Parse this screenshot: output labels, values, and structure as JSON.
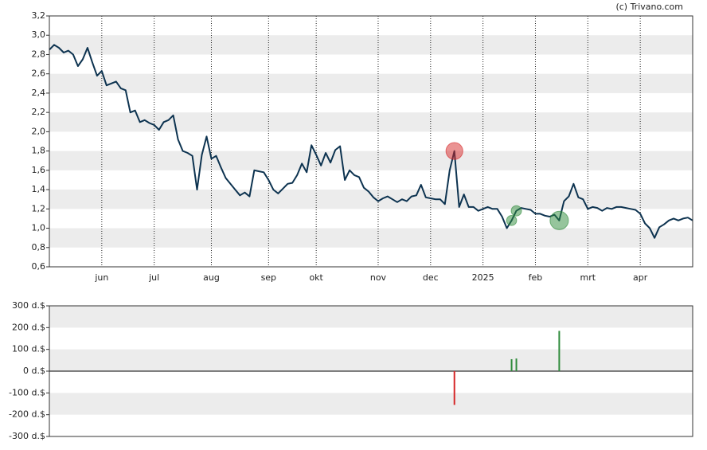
{
  "chart_data": [
    {
      "type": "line",
      "source": "(c) Trivano.com",
      "categories": [
        null,
        null,
        null,
        null,
        null,
        null,
        null,
        null,
        null,
        null,
        null,
        "jun",
        null,
        null,
        null,
        null,
        null,
        null,
        null,
        null,
        null,
        null,
        "jul",
        null,
        null,
        null,
        null,
        null,
        null,
        null,
        null,
        null,
        null,
        null,
        "aug",
        null,
        null,
        null,
        null,
        null,
        null,
        null,
        null,
        null,
        null,
        null,
        "sep",
        null,
        null,
        null,
        null,
        null,
        null,
        null,
        null,
        null,
        "okt",
        null,
        null,
        null,
        null,
        null,
        null,
        null,
        null,
        null,
        null,
        null,
        null,
        "nov",
        null,
        null,
        null,
        null,
        null,
        null,
        null,
        null,
        null,
        null,
        "dec",
        null,
        null,
        null,
        null,
        null,
        null,
        null,
        null,
        null,
        null,
        "2025",
        null,
        null,
        null,
        null,
        null,
        null,
        null,
        null,
        null,
        null,
        "feb",
        null,
        null,
        null,
        null,
        null,
        null,
        null,
        null,
        null,
        null,
        "mrt",
        null,
        null,
        null,
        null,
        null,
        null,
        null,
        null,
        null,
        null,
        "apr",
        null,
        null,
        null,
        null,
        null,
        null,
        null,
        null,
        null,
        null,
        null
      ],
      "values": [
        2.85,
        2.9,
        2.87,
        2.82,
        2.84,
        2.8,
        2.68,
        2.75,
        2.87,
        2.72,
        2.58,
        2.63,
        2.48,
        2.5,
        2.52,
        2.45,
        2.43,
        2.2,
        2.22,
        2.1,
        2.12,
        2.09,
        2.07,
        2.02,
        2.1,
        2.12,
        2.17,
        1.92,
        1.8,
        1.78,
        1.75,
        1.4,
        1.76,
        1.95,
        1.72,
        1.75,
        1.63,
        1.52,
        1.46,
        1.4,
        1.34,
        1.37,
        1.33,
        1.6,
        1.59,
        1.58,
        1.5,
        1.4,
        1.36,
        1.41,
        1.46,
        1.47,
        1.55,
        1.67,
        1.58,
        1.86,
        1.76,
        1.65,
        1.78,
        1.68,
        1.81,
        1.85,
        1.5,
        1.6,
        1.55,
        1.53,
        1.42,
        1.38,
        1.32,
        1.28,
        1.31,
        1.33,
        1.3,
        1.27,
        1.3,
        1.28,
        1.33,
        1.34,
        1.45,
        1.32,
        1.31,
        1.3,
        1.3,
        1.25,
        1.6,
        1.8,
        1.22,
        1.35,
        1.22,
        1.22,
        1.18,
        1.2,
        1.22,
        1.2,
        1.2,
        1.12,
        1.0,
        1.08,
        1.18,
        1.21,
        1.2,
        1.19,
        1.15,
        1.15,
        1.13,
        1.12,
        1.14,
        1.08,
        1.28,
        1.33,
        1.46,
        1.32,
        1.3,
        1.2,
        1.22,
        1.21,
        1.18,
        1.21,
        1.2,
        1.22,
        1.22,
        1.21,
        1.2,
        1.19,
        1.15,
        1.05,
        1.0,
        0.9,
        1.01,
        1.04,
        1.08,
        1.1,
        1.08,
        1.1,
        1.11,
        1.08
      ],
      "color": "#0d3350",
      "ylim": [
        0.6,
        3.2
      ],
      "yticks": [
        {
          "value": 3.2,
          "label": "3,2"
        },
        {
          "value": 3.0,
          "label": "3,0"
        },
        {
          "value": 2.8,
          "label": "2,8"
        },
        {
          "value": 2.6,
          "label": "2,6"
        },
        {
          "value": 2.4,
          "label": "2,4"
        },
        {
          "value": 2.2,
          "label": "2,2"
        },
        {
          "value": 2.0,
          "label": "2,0"
        },
        {
          "value": 1.8,
          "label": "1,8"
        },
        {
          "value": 1.6,
          "label": "1,6"
        },
        {
          "value": 1.4,
          "label": "1,4"
        },
        {
          "value": 1.2,
          "label": "1,2"
        },
        {
          "value": 1.0,
          "label": "1,0"
        },
        {
          "value": 0.8,
          "label": "0,8"
        },
        {
          "value": 0.6,
          "label": "0,6"
        }
      ],
      "grid": true
    },
    {
      "type": "bar",
      "values": [
        null,
        null,
        null,
        null,
        null,
        null,
        null,
        null,
        null,
        null,
        null,
        null,
        null,
        null,
        null,
        null,
        null,
        null,
        null,
        null,
        null,
        null,
        null,
        null,
        null,
        null,
        null,
        null,
        null,
        null,
        null,
        null,
        null,
        null,
        null,
        null,
        null,
        null,
        null,
        null,
        null,
        null,
        null,
        null,
        null,
        null,
        null,
        null,
        null,
        null,
        null,
        null,
        null,
        null,
        null,
        null,
        null,
        null,
        null,
        null,
        null,
        null,
        null,
        null,
        null,
        null,
        null,
        null,
        null,
        null,
        null,
        null,
        null,
        null,
        null,
        null,
        null,
        null,
        null,
        null,
        null,
        null,
        null,
        null,
        null,
        -155,
        null,
        null,
        null,
        null,
        null,
        null,
        null,
        null,
        null,
        null,
        null,
        55,
        58,
        null,
        null,
        null,
        null,
        null,
        null,
        null,
        null,
        185,
        null,
        null,
        null,
        null,
        null,
        null,
        null,
        null,
        null,
        null,
        null,
        null,
        null,
        null,
        null,
        null,
        null,
        null,
        null,
        null,
        null,
        null,
        null,
        null,
        null,
        null,
        null,
        null
      ],
      "positive_color": "#2e8b3a",
      "negative_color": "#d62728",
      "ylim": [
        -300,
        300
      ],
      "yticks": [
        {
          "value": 300,
          "label": "300 d.$"
        },
        {
          "value": 200,
          "label": "200 d.$"
        },
        {
          "value": 100,
          "label": "100 d.$"
        },
        {
          "value": 0,
          "label": "0 d.$"
        },
        {
          "value": -100,
          "label": "-100 d.$"
        },
        {
          "value": -200,
          "label": "-200 d.$"
        },
        {
          "value": -300,
          "label": "-300 d.$"
        }
      ],
      "grid": true
    }
  ]
}
